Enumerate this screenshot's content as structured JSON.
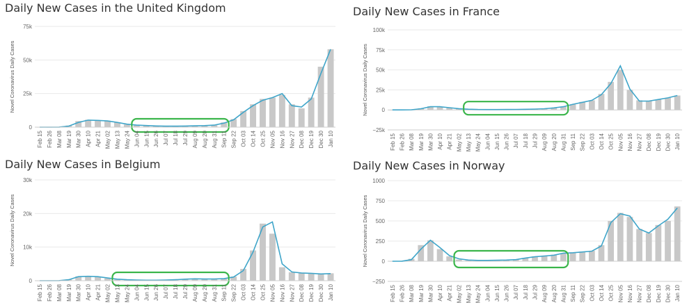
{
  "chart_data": [
    {
      "type": "bar",
      "title": "Daily New Cases in the United Kingdom",
      "ylabel": "Novel Coronavirus Daily Cases",
      "xlabel": "",
      "ylim": [
        0,
        75000
      ],
      "yticks": [
        0,
        25000,
        50000,
        75000
      ],
      "ytick_labels": [
        "0",
        "25k",
        "50k",
        "75k"
      ],
      "categories": [
        "Feb 15",
        "Feb 26",
        "Mar 08",
        "Mar 19",
        "Mar 30",
        "Apr 10",
        "Apr 21",
        "May 02",
        "May 13",
        "May 24",
        "Jun 04",
        "Jun 15",
        "Jun 26",
        "Jul 07",
        "Jul 18",
        "Jul 29",
        "Aug 09",
        "Aug 20",
        "Aug 31",
        "Sep 11",
        "Sep 22",
        "Oct 03",
        "Oct 14",
        "Oct 25",
        "Nov 05",
        "Nov 16",
        "Nov 27",
        "Dec 08",
        "Dec 19",
        "Dec 30",
        "Jan 10"
      ],
      "values": [
        0,
        0,
        100,
        1200,
        4500,
        5500,
        5000,
        4800,
        3500,
        2000,
        1500,
        1200,
        1000,
        800,
        700,
        900,
        1000,
        1200,
        1500,
        3500,
        6000,
        12000,
        17000,
        21000,
        22000,
        24000,
        17000,
        14000,
        22000,
        45000,
        58000
      ],
      "moving_average": [
        0,
        0,
        50,
        800,
        3500,
        5200,
        5000,
        4600,
        3500,
        2200,
        1500,
        1200,
        900,
        750,
        700,
        850,
        1000,
        1150,
        1500,
        3000,
        5500,
        11000,
        16000,
        20000,
        22000,
        25000,
        16000,
        15000,
        21000,
        40000,
        58000
      ],
      "highlight": {
        "start": "Jun 04",
        "end": "Sep 11"
      }
    },
    {
      "type": "bar",
      "title": "Daily New Cases in France",
      "ylabel": "Novel Coronavirus Daily Cases",
      "xlabel": "",
      "ylim": [
        -25000,
        100000
      ],
      "yticks": [
        -25000,
        0,
        25000,
        50000,
        75000,
        100000
      ],
      "ytick_labels": [
        "−25k",
        "0",
        "25k",
        "50k",
        "75k",
        "100k"
      ],
      "categories": [
        "Feb 15",
        "Feb 26",
        "Mar 08",
        "Mar 19",
        "Mar 30",
        "Apr 10",
        "Apr 21",
        "May 02",
        "May 13",
        "May 24",
        "Jun 04",
        "Jun 15",
        "Jun 26",
        "Jul 07",
        "Jul 18",
        "Jul 29",
        "Aug 09",
        "Aug 20",
        "Aug 31",
        "Sep 11",
        "Sep 22",
        "Oct 03",
        "Oct 14",
        "Oct 25",
        "Nov 05",
        "Nov 16",
        "Nov 27",
        "Dec 08",
        "Dec 19",
        "Dec 30",
        "Jan 10"
      ],
      "values": [
        0,
        0,
        300,
        2000,
        4500,
        4000,
        2500,
        1500,
        800,
        500,
        400,
        450,
        500,
        600,
        800,
        1000,
        1500,
        2500,
        4000,
        7000,
        10000,
        12000,
        20000,
        35000,
        50000,
        25000,
        12000,
        11000,
        13000,
        15000,
        18000
      ],
      "moving_average": [
        0,
        0,
        200,
        1500,
        4000,
        4000,
        2800,
        1600,
        900,
        500,
        400,
        450,
        500,
        600,
        800,
        1000,
        1500,
        2500,
        4000,
        7000,
        9500,
        12000,
        19000,
        33000,
        55000,
        26000,
        11000,
        11000,
        13000,
        15000,
        18000
      ],
      "highlight": {
        "start": "May 13",
        "end": "Aug 31"
      }
    },
    {
      "type": "bar",
      "title": "Daily New Cases in Belgium",
      "ylabel": "Novel Coronavirus Daily Cases",
      "xlabel": "",
      "ylim": [
        0,
        30000
      ],
      "yticks": [
        0,
        10000,
        20000,
        30000
      ],
      "ytick_labels": [
        "0",
        "10k",
        "20k",
        "30k"
      ],
      "categories": [
        "Feb 15",
        "Feb 26",
        "Mar 08",
        "Mar 19",
        "Mar 30",
        "Apr 10",
        "Apr 21",
        "May 02",
        "May 13",
        "May 24",
        "Jun 04",
        "Jun 15",
        "Jun 26",
        "Jul 07",
        "Jul 18",
        "Jul 29",
        "Aug 09",
        "Aug 20",
        "Aug 31",
        "Sep 11",
        "Sep 22",
        "Oct 03",
        "Oct 14",
        "Oct 25",
        "Nov 05",
        "Nov 16",
        "Nov 27",
        "Dec 08",
        "Dec 19",
        "Dec 30",
        "Jan 10"
      ],
      "values": [
        0,
        0,
        50,
        400,
        1300,
        1400,
        1200,
        700,
        400,
        300,
        200,
        150,
        150,
        200,
        300,
        500,
        600,
        500,
        500,
        600,
        1200,
        3500,
        9000,
        17000,
        14000,
        4000,
        2500,
        2300,
        2200,
        2000,
        2200
      ],
      "moving_average": [
        0,
        0,
        30,
        300,
        1200,
        1300,
        1200,
        800,
        450,
        300,
        200,
        150,
        150,
        180,
        280,
        450,
        550,
        500,
        500,
        600,
        1100,
        3000,
        8500,
        16000,
        17500,
        5000,
        2600,
        2300,
        2200,
        2000,
        2100
      ],
      "highlight": {
        "start": "May 13",
        "end": "Sep 11"
      }
    },
    {
      "type": "bar",
      "title": "Daily New Cases in Norway",
      "ylabel": "Novel Coronavirus Daily Cases",
      "xlabel": "",
      "ylim": [
        -250,
        1000
      ],
      "yticks": [
        -250,
        0,
        250,
        500,
        750,
        1000
      ],
      "ytick_labels": [
        "−250",
        "0",
        "250",
        "500",
        "750",
        "1000"
      ],
      "categories": [
        "Feb 15",
        "Feb 26",
        "Mar 08",
        "Mar 19",
        "Mar 30",
        "Apr 10",
        "Apr 21",
        "May 02",
        "May 13",
        "May 24",
        "Jun 04",
        "Jun 15",
        "Jun 26",
        "Jul 07",
        "Jul 18",
        "Jul 29",
        "Aug 09",
        "Aug 20",
        "Aug 31",
        "Sep 11",
        "Sep 22",
        "Oct 03",
        "Oct 14",
        "Oct 25",
        "Nov 05",
        "Nov 16",
        "Nov 27",
        "Dec 08",
        "Dec 19",
        "Dec 30",
        "Jan 10"
      ],
      "values": [
        0,
        2,
        30,
        200,
        260,
        150,
        60,
        20,
        10,
        10,
        10,
        15,
        15,
        20,
        40,
        60,
        70,
        80,
        100,
        110,
        120,
        130,
        200,
        500,
        600,
        550,
        400,
        350,
        450,
        500,
        680
      ],
      "moving_average": [
        0,
        1,
        20,
        150,
        260,
        170,
        70,
        30,
        15,
        10,
        10,
        12,
        15,
        20,
        40,
        55,
        65,
        75,
        100,
        105,
        115,
        125,
        190,
        480,
        590,
        560,
        400,
        350,
        440,
        520,
        660
      ],
      "highlight": {
        "start": "May 02",
        "end": "Aug 31"
      }
    }
  ]
}
